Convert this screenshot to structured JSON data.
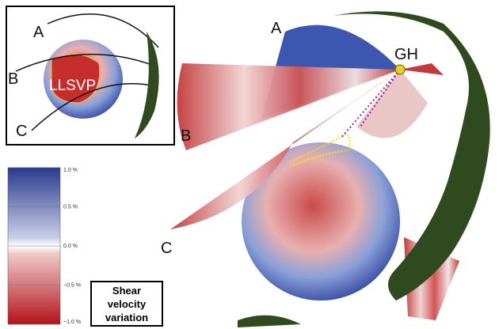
{
  "inset": {
    "labels": [
      "A",
      "B",
      "C"
    ],
    "region": "LLSVP"
  },
  "main": {
    "labels": [
      "A",
      "B",
      "C"
    ],
    "hotspot": "GH"
  },
  "colorbar": {
    "ticks": [
      "1.0 %",
      "0.5 %",
      "0.0 %",
      "−0.5 %",
      "−1.0 %"
    ],
    "title": [
      "Shear",
      "velocity",
      "variation"
    ]
  }
}
